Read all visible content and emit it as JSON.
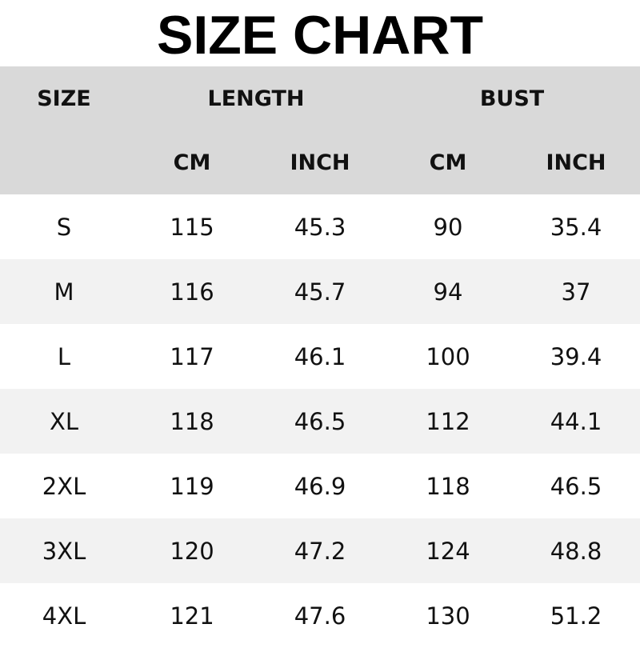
{
  "title": "SIZE CHART",
  "header": {
    "size": "SIZE",
    "length": "LENGTH",
    "bust": "BUST",
    "cm": "CM",
    "inch": "INCH"
  },
  "colors": {
    "header_bg": "#d9d9d9",
    "alt_row_bg": "#f2f2f2"
  },
  "rows": [
    {
      "size": "S",
      "length_cm": "115",
      "length_inch": "45.3",
      "bust_cm": "90",
      "bust_inch": "35.4"
    },
    {
      "size": "M",
      "length_cm": "116",
      "length_inch": "45.7",
      "bust_cm": "94",
      "bust_inch": "37"
    },
    {
      "size": "L",
      "length_cm": "117",
      "length_inch": "46.1",
      "bust_cm": "100",
      "bust_inch": "39.4"
    },
    {
      "size": "XL",
      "length_cm": "118",
      "length_inch": "46.5",
      "bust_cm": "112",
      "bust_inch": "44.1"
    },
    {
      "size": "2XL",
      "length_cm": "119",
      "length_inch": "46.9",
      "bust_cm": "118",
      "bust_inch": "46.5"
    },
    {
      "size": "3XL",
      "length_cm": "120",
      "length_inch": "47.2",
      "bust_cm": "124",
      "bust_inch": "48.8"
    },
    {
      "size": "4XL",
      "length_cm": "121",
      "length_inch": "47.6",
      "bust_cm": "130",
      "bust_inch": "51.2"
    }
  ]
}
